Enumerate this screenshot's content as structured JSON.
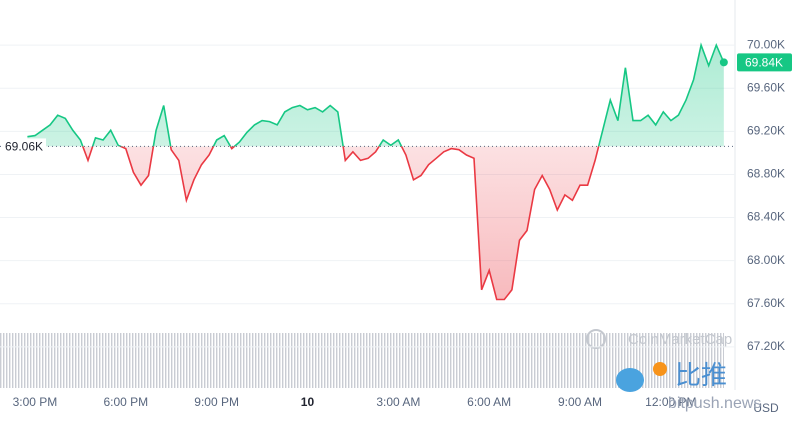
{
  "chart_data": {
    "type": "line",
    "categories": [
      null,
      "3:00 PM",
      null,
      null,
      null,
      null,
      null,
      null,
      null,
      null,
      null,
      null,
      null,
      "6:00 PM",
      null,
      null,
      null,
      null,
      null,
      null,
      null,
      null,
      null,
      null,
      null,
      "9:00 PM",
      null,
      null,
      null,
      null,
      null,
      null,
      null,
      null,
      null,
      null,
      null,
      "10",
      null,
      null,
      null,
      null,
      null,
      null,
      null,
      null,
      null,
      null,
      null,
      "3:00 AM",
      null,
      null,
      null,
      null,
      null,
      null,
      null,
      null,
      null,
      null,
      null,
      "6:00 AM",
      null,
      null,
      null,
      null,
      null,
      null,
      null,
      null,
      null,
      null,
      null,
      "9:00 AM",
      null,
      null,
      null,
      null,
      null,
      null,
      null,
      null,
      null,
      null,
      null,
      "12:00 PM",
      null,
      null,
      null,
      null,
      null,
      null,
      null
    ],
    "values": [
      69150,
      69160,
      69210,
      69260,
      69350,
      69320,
      69210,
      69120,
      68930,
      69140,
      69120,
      69210,
      69070,
      69040,
      68820,
      68700,
      68790,
      69210,
      69440,
      69030,
      68930,
      68560,
      68750,
      68890,
      68980,
      69120,
      69160,
      69040,
      69100,
      69190,
      69260,
      69300,
      69290,
      69260,
      69380,
      69420,
      69440,
      69400,
      69420,
      69380,
      69440,
      69380,
      68930,
      69010,
      68930,
      68950,
      69010,
      69120,
      69070,
      69120,
      68980,
      68750,
      68790,
      68890,
      68950,
      69010,
      69040,
      69030,
      68980,
      68950,
      67730,
      67910,
      67640,
      67640,
      67730,
      68190,
      68280,
      68660,
      68790,
      68660,
      68470,
      68610,
      68560,
      68700,
      68700,
      68930,
      69210,
      69490,
      69300,
      69790,
      69300,
      69300,
      69350,
      69260,
      69380,
      69300,
      69350,
      69490,
      69680,
      70000,
      69810,
      70000,
      69840
    ],
    "ylim": [
      66800,
      70400
    ],
    "yticks": [
      {
        "value": 67200,
        "label": "67.20K"
      },
      {
        "value": 67600,
        "label": "67.60K"
      },
      {
        "value": 68000,
        "label": "68.00K"
      },
      {
        "value": 68400,
        "label": "68.40K"
      },
      {
        "value": 68800,
        "label": "68.80K"
      },
      {
        "value": 69200,
        "label": "69.20K"
      },
      {
        "value": 69600,
        "label": "69.60K"
      },
      {
        "value": 70000,
        "label": "70.00K"
      }
    ],
    "reference": {
      "value": 69060,
      "label": "69.06K"
    },
    "current": {
      "value": 69840,
      "label": "69.84K"
    },
    "up_color": "#16c784",
    "down_color": "#ea3943",
    "grid": true,
    "currency": "USD",
    "watermark": "CoinMarketCap",
    "overlay": {
      "brand": "比推",
      "site": "bitpush.news"
    }
  }
}
